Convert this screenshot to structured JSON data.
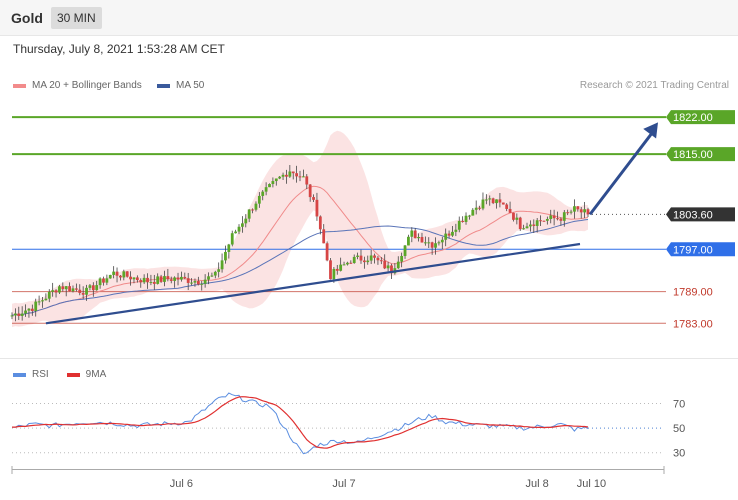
{
  "header": {
    "title": "Gold",
    "timeframe": "30 MIN"
  },
  "datetime": "Thursday, July 8, 2021 1:53:28 AM CET",
  "legend": [
    {
      "label": "MA 20 + Bollinger Bands",
      "color": "#f28b8b"
    },
    {
      "label": "MA 50",
      "color": "#3a5a9c"
    }
  ],
  "credit": "Research © 2021 Trading Central",
  "rsi_legend": [
    {
      "label": "RSI",
      "color": "#5b8ee0"
    },
    {
      "label": "9MA",
      "color": "#e03030"
    }
  ],
  "colors": {
    "resistance": "#5aa628",
    "support": "#2f6fe8",
    "weak_support": "#c0392b",
    "current": "#333333",
    "trend": "#2f4d8f",
    "candle_up": "#5aa628",
    "candle_down": "#d64545"
  },
  "chart_data": [
    {
      "type": "candlestick",
      "title": "Gold",
      "timeframe": "30 MIN",
      "x_ticks": [
        "Jul 6",
        "Jul 7",
        "Jul 8",
        "Jul 10"
      ],
      "ylim": [
        1777,
        1826
      ],
      "levels": [
        {
          "value": 1822.0,
          "label": "1822.00",
          "kind": "resistance"
        },
        {
          "value": 1815.0,
          "label": "1815.00",
          "kind": "resistance"
        },
        {
          "value": 1803.6,
          "label": "1803.60",
          "kind": "current"
        },
        {
          "value": 1797.0,
          "label": "1797.00",
          "kind": "support"
        },
        {
          "value": 1789.0,
          "label": "1789.00",
          "kind": "weak_support"
        },
        {
          "value": 1783.0,
          "label": "1783.00",
          "kind": "weak_support"
        }
      ],
      "price_path": [
        [
          1784.5,
          0
        ],
        [
          1786.0,
          6
        ],
        [
          1790.0,
          14
        ],
        [
          1789.0,
          22
        ],
        [
          1792.5,
          30
        ],
        [
          1791.0,
          40
        ],
        [
          1791.5,
          48
        ],
        [
          1791.0,
          55
        ],
        [
          1792.0,
          60
        ],
        [
          1799.5,
          65
        ],
        [
          1806.0,
          72
        ],
        [
          1810.0,
          78
        ],
        [
          1812.0,
          82
        ],
        [
          1810.5,
          86
        ],
        [
          1804.0,
          90
        ],
        [
          1792.0,
          94
        ],
        [
          1795.0,
          100
        ],
        [
          1795.5,
          106
        ],
        [
          1793.0,
          112
        ],
        [
          1800.0,
          118
        ],
        [
          1798.0,
          124
        ],
        [
          1799.5,
          128
        ],
        [
          1803.5,
          134
        ],
        [
          1806.5,
          140
        ],
        [
          1805.0,
          146
        ],
        [
          1801.5,
          150
        ],
        [
          1802.5,
          156
        ],
        [
          1803.0,
          162
        ],
        [
          1804.5,
          166
        ],
        [
          1803.6,
          170
        ]
      ],
      "trend_line": {
        "from": 1783.0,
        "to": 1798.0
      },
      "forecast_arrow": {
        "from": 1803.6,
        "to": 1821.0
      }
    },
    {
      "type": "line",
      "title": "RSI",
      "ylim": [
        20,
        85
      ],
      "y_ticks": [
        70,
        50,
        30
      ],
      "rsi_path": [
        [
          50,
          0
        ],
        [
          53,
          6
        ],
        [
          52,
          12
        ],
        [
          54,
          18
        ],
        [
          55,
          24
        ],
        [
          54,
          30
        ],
        [
          52,
          36
        ],
        [
          53,
          42
        ],
        [
          54,
          48
        ],
        [
          55,
          52
        ],
        [
          63,
          56
        ],
        [
          72,
          60
        ],
        [
          77,
          64
        ],
        [
          74,
          68
        ],
        [
          70,
          72
        ],
        [
          68,
          76
        ],
        [
          52,
          80
        ],
        [
          36,
          84
        ],
        [
          28,
          86
        ],
        [
          36,
          90
        ],
        [
          40,
          96
        ],
        [
          38,
          102
        ],
        [
          44,
          108
        ],
        [
          48,
          112
        ],
        [
          52,
          116
        ],
        [
          57,
          120
        ],
        [
          60,
          124
        ],
        [
          55,
          128
        ],
        [
          53,
          134
        ],
        [
          52,
          140
        ],
        [
          51,
          146
        ],
        [
          50,
          152
        ],
        [
          52,
          158
        ],
        [
          53,
          162
        ],
        [
          49,
          166
        ],
        [
          50,
          170
        ]
      ],
      "ma9_level_end": 50
    }
  ]
}
